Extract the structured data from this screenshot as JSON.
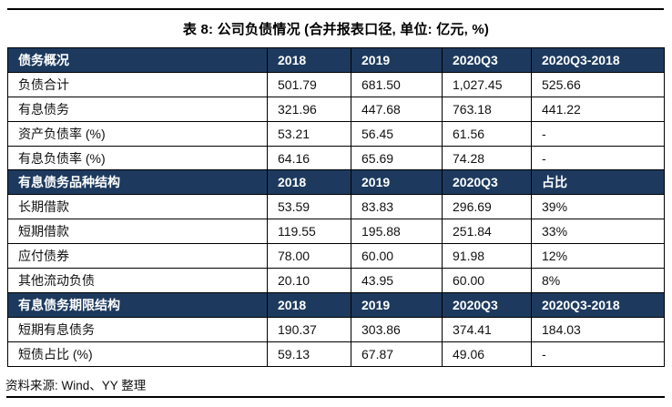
{
  "title": "表 8: 公司负债情况 (合并报表口径, 单位: 亿元, %)",
  "colors": {
    "header_bg": "#1d3a5e",
    "header_text": "#ffffff",
    "border": "#000000",
    "body_text": "#111111"
  },
  "table": {
    "sections": [
      {
        "header": [
          "债务概况",
          "2018",
          "2019",
          "2020Q3",
          "2020Q3-2018"
        ],
        "rows": [
          [
            "负债合计",
            "501.79",
            "681.50",
            "1,027.45",
            "525.66"
          ],
          [
            "有息债务",
            "321.96",
            "447.68",
            "763.18",
            "441.22"
          ],
          [
            "资产负债率 (%)",
            "53.21",
            "56.45",
            "61.56",
            "-"
          ],
          [
            "有息负债率 (%)",
            "64.16",
            "65.69",
            "74.28",
            "-"
          ]
        ]
      },
      {
        "header": [
          "有息债务品种结构",
          "2018",
          "2019",
          "2020Q3",
          "占比"
        ],
        "rows": [
          [
            "长期借款",
            "53.59",
            "83.83",
            "296.69",
            "39%"
          ],
          [
            "短期借款",
            "119.55",
            "195.88",
            "251.84",
            "33%"
          ],
          [
            "应付债券",
            "78.00",
            "60.00",
            "91.98",
            "12%"
          ],
          [
            "其他流动负债",
            "20.10",
            "43.95",
            "60.00",
            "8%"
          ]
        ]
      },
      {
        "header": [
          "有息债务期限结构",
          "2018",
          "2019",
          "2020Q3",
          "2020Q3-2018"
        ],
        "rows": [
          [
            "短期有息债务",
            "190.37",
            "303.86",
            "374.41",
            "184.03"
          ],
          [
            "短债占比 (%)",
            "59.13",
            "67.87",
            "49.06",
            "-"
          ]
        ]
      }
    ]
  },
  "footer": {
    "source": "资料来源: Wind、YY 整理"
  }
}
